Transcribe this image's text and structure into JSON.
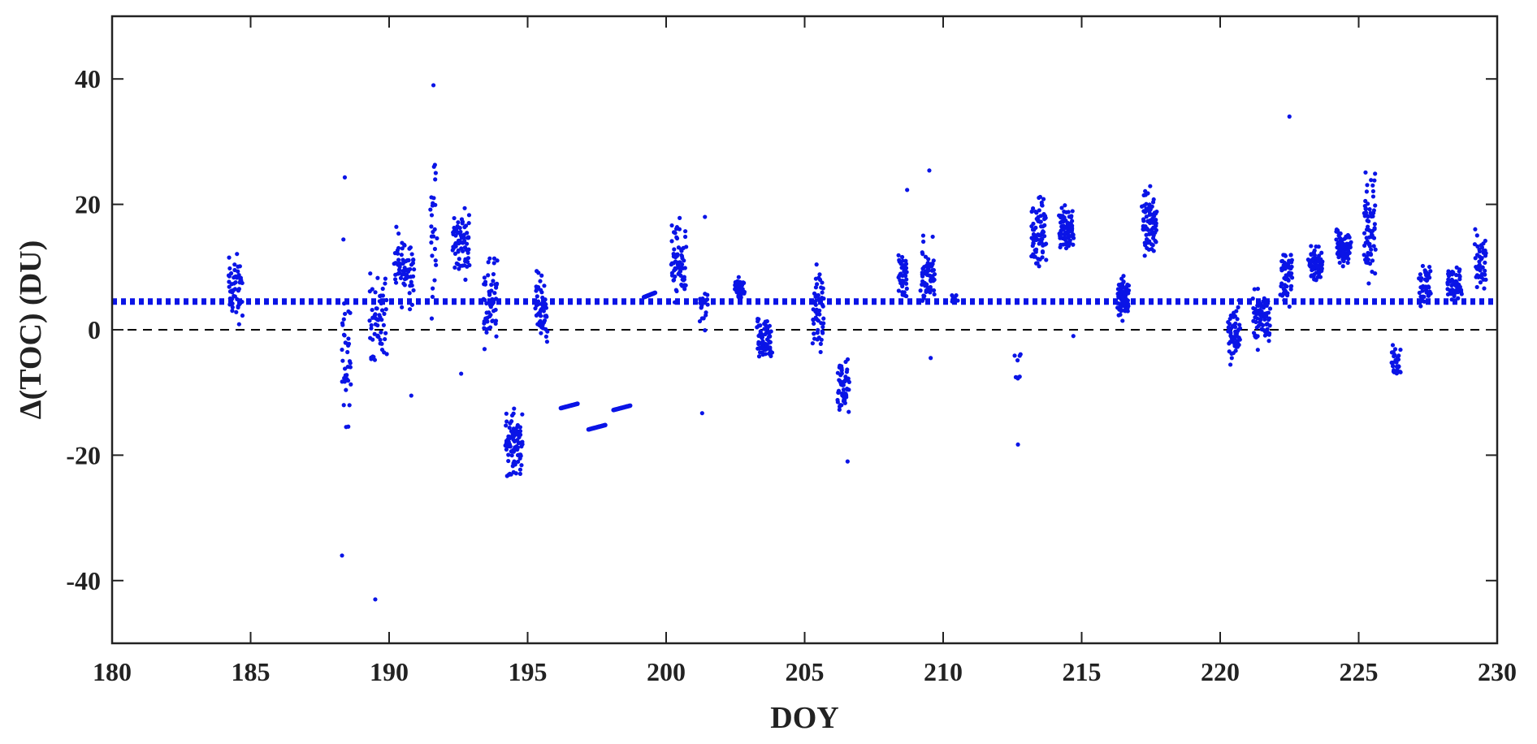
{
  "chart_data": {
    "type": "scatter",
    "xlabel": "DOY",
    "ylabel": "Δ(TOC) (DU)",
    "xlim": [
      180,
      230
    ],
    "ylim": [
      -50,
      50
    ],
    "xticks": [
      180,
      185,
      190,
      195,
      200,
      205,
      210,
      215,
      220,
      225,
      230
    ],
    "yticks": [
      -40,
      -20,
      0,
      20,
      40
    ],
    "xtick_labels": [
      "180",
      "185",
      "190",
      "195",
      "200",
      "205",
      "210",
      "215",
      "220",
      "225",
      "230"
    ],
    "ytick_labels": [
      "-40",
      "-20",
      "0",
      "20",
      "40"
    ],
    "grid": false,
    "legend": "none",
    "colors": {
      "points": "#0a14e6",
      "mean_line": "#0a14e6",
      "zero_line": "#000000",
      "axes": "#222222"
    },
    "reference_lines": [
      {
        "kind": "mean",
        "y": 4.5,
        "style": "dotted",
        "color": "#0a14e6"
      },
      {
        "kind": "zero",
        "y": 0,
        "style": "dashed",
        "color": "#000000"
      }
    ],
    "series": [
      {
        "clusters": [
          {
            "x_start": 184.2,
            "x_end": 184.7,
            "y_min": -1,
            "y_max": 14,
            "n": 50
          },
          {
            "x_start": 188.3,
            "x_end": 188.6,
            "y_min": -20,
            "y_max": 9,
            "n": 35
          },
          {
            "x_start": 189.3,
            "x_end": 189.9,
            "y_min": -8,
            "y_max": 12,
            "n": 55
          },
          {
            "x_start": 190.2,
            "x_end": 190.9,
            "y_min": 2,
            "y_max": 18,
            "n": 70
          },
          {
            "x_start": 191.5,
            "x_end": 191.7,
            "y_min": -4,
            "y_max": 33,
            "n": 25
          },
          {
            "x_start": 192.3,
            "x_end": 192.9,
            "y_min": 7,
            "y_max": 21,
            "n": 70
          },
          {
            "x_start": 193.4,
            "x_end": 193.9,
            "y_min": -5,
            "y_max": 15,
            "n": 55
          },
          {
            "x_start": 194.2,
            "x_end": 194.8,
            "y_min": -25,
            "y_max": -11,
            "n": 90
          },
          {
            "x_start": 195.3,
            "x_end": 195.7,
            "y_min": -4,
            "y_max": 11,
            "n": 55
          },
          {
            "x_start": 200.2,
            "x_end": 200.7,
            "y_min": 2,
            "y_max": 19,
            "n": 70
          },
          {
            "x_start": 201.2,
            "x_end": 201.5,
            "y_min": -2,
            "y_max": 8,
            "n": 20
          },
          {
            "x_start": 202.5,
            "x_end": 202.8,
            "y_min": 4,
            "y_max": 9,
            "n": 45
          },
          {
            "x_start": 203.3,
            "x_end": 203.8,
            "y_min": -7,
            "y_max": 3,
            "n": 70
          },
          {
            "x_start": 205.3,
            "x_end": 205.7,
            "y_min": -8,
            "y_max": 14,
            "n": 55
          },
          {
            "x_start": 206.2,
            "x_end": 206.6,
            "y_min": -15,
            "y_max": -3,
            "n": 55
          },
          {
            "x_start": 208.4,
            "x_end": 208.7,
            "y_min": 3,
            "y_max": 14,
            "n": 40
          },
          {
            "x_start": 209.2,
            "x_end": 209.7,
            "y_min": 1,
            "y_max": 16,
            "n": 65
          },
          {
            "x_start": 210.3,
            "x_end": 210.5,
            "y_min": 4,
            "y_max": 6,
            "n": 8
          },
          {
            "x_start": 212.6,
            "x_end": 212.8,
            "y_min": -10,
            "y_max": -2,
            "n": 8
          },
          {
            "x_start": 213.2,
            "x_end": 213.7,
            "y_min": 8,
            "y_max": 23,
            "n": 80
          },
          {
            "x_start": 214.2,
            "x_end": 214.7,
            "y_min": 11,
            "y_max": 22,
            "n": 80
          },
          {
            "x_start": 216.3,
            "x_end": 216.7,
            "y_min": 0,
            "y_max": 10,
            "n": 75
          },
          {
            "x_start": 217.2,
            "x_end": 217.7,
            "y_min": 9,
            "y_max": 25,
            "n": 80
          },
          {
            "x_start": 220.3,
            "x_end": 220.7,
            "y_min": -7,
            "y_max": 6,
            "n": 60
          },
          {
            "x_start": 221.2,
            "x_end": 221.8,
            "y_min": -4,
            "y_max": 8,
            "n": 75
          },
          {
            "x_start": 222.2,
            "x_end": 222.6,
            "y_min": 2,
            "y_max": 15,
            "n": 60
          },
          {
            "x_start": 223.2,
            "x_end": 223.7,
            "y_min": 7,
            "y_max": 14,
            "n": 80
          },
          {
            "x_start": 224.2,
            "x_end": 224.7,
            "y_min": 9,
            "y_max": 17,
            "n": 80
          },
          {
            "x_start": 225.2,
            "x_end": 225.6,
            "y_min": 6,
            "y_max": 28,
            "n": 70
          },
          {
            "x_start": 226.2,
            "x_end": 226.5,
            "y_min": -9,
            "y_max": -1,
            "n": 30
          },
          {
            "x_start": 227.2,
            "x_end": 227.6,
            "y_min": 2,
            "y_max": 13,
            "n": 45
          },
          {
            "x_start": 228.2,
            "x_end": 228.7,
            "y_min": 4,
            "y_max": 11,
            "n": 55
          },
          {
            "x_start": 229.2,
            "x_end": 229.6,
            "y_min": 2,
            "y_max": 19,
            "n": 45
          }
        ],
        "line_segments": [
          {
            "x_start": 196.2,
            "x_end": 196.8,
            "y_start": -12.5,
            "y_end": -11.8
          },
          {
            "x_start": 197.2,
            "x_end": 197.8,
            "y_start": -15.9,
            "y_end": -15.2
          },
          {
            "x_start": 198.1,
            "x_end": 198.7,
            "y_start": -12.8,
            "y_end": -12.1
          },
          {
            "x_start": 199.2,
            "x_end": 199.6,
            "y_start": 5.2,
            "y_end": 5.9
          }
        ],
        "outliers": [
          {
            "x": 188.4,
            "y": 24.3
          },
          {
            "x": 188.35,
            "y": 14.4
          },
          {
            "x": 188.3,
            "y": -36
          },
          {
            "x": 189.5,
            "y": -43
          },
          {
            "x": 190.8,
            "y": -10.5
          },
          {
            "x": 191.6,
            "y": 39
          },
          {
            "x": 191.62,
            "y": 26
          },
          {
            "x": 192.6,
            "y": -7
          },
          {
            "x": 201.3,
            "y": -13.3
          },
          {
            "x": 201.4,
            "y": 18
          },
          {
            "x": 206.55,
            "y": -21
          },
          {
            "x": 208.7,
            "y": 22.3
          },
          {
            "x": 209.5,
            "y": 25.4
          },
          {
            "x": 209.55,
            "y": -4.5
          },
          {
            "x": 212.7,
            "y": -18.3
          },
          {
            "x": 214.7,
            "y": -1
          },
          {
            "x": 222.5,
            "y": 34
          }
        ]
      }
    ]
  }
}
